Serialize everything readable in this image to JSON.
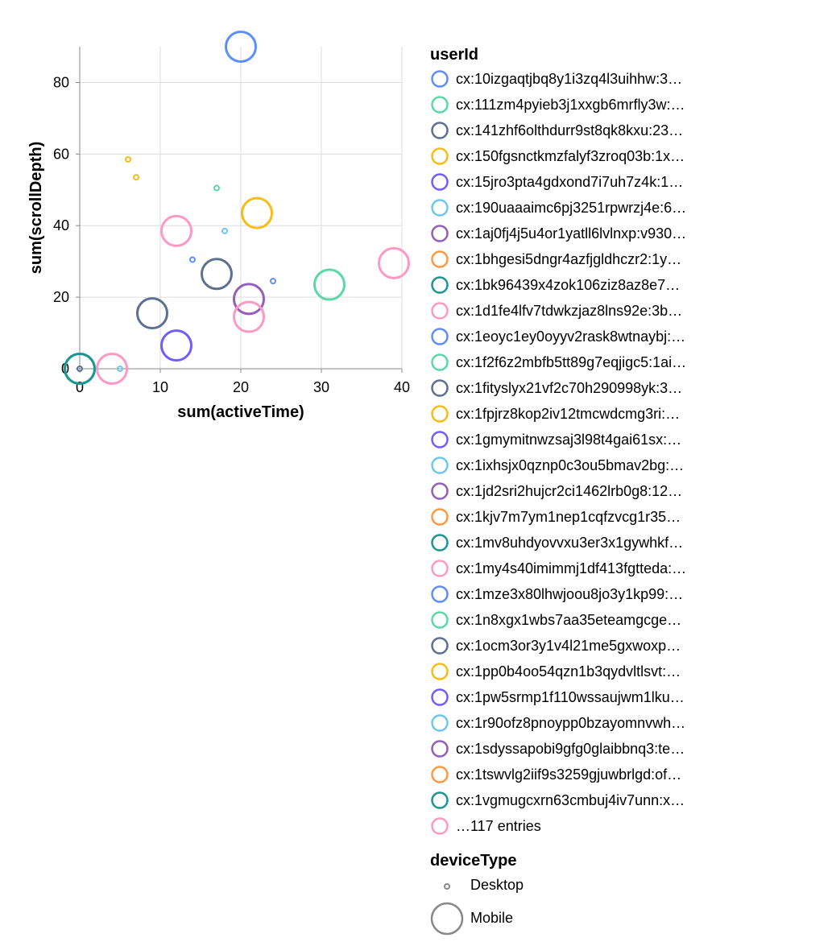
{
  "chart_data": {
    "type": "scatter",
    "xlabel": "sum(activeTime)",
    "ylabel": "sum(scrollDepth)",
    "xlim": [
      0,
      40
    ],
    "ylim": [
      0,
      90
    ],
    "x_ticks": [
      "0",
      "10",
      "20",
      "30",
      "40"
    ],
    "y_ticks": [
      "0",
      "20",
      "40",
      "60",
      "80"
    ],
    "grid": true,
    "color_legend": {
      "title": "userId",
      "placement": "right",
      "entries": [
        {
          "label": "cx:10izgaqtjbq8y1i3zq4l3uihhw:3…",
          "color": "#5b8ff9"
        },
        {
          "label": "cx:111zm4pyieb3j1xxgb6mrfly3w:…",
          "color": "#5ad8a6"
        },
        {
          "label": "cx:141zhf6olthdurr9st8qk8kxu:23…",
          "color": "#5d7092"
        },
        {
          "label": "cx:150fgsnctkmzfalyf3zroq03b:1x…",
          "color": "#f6bd16"
        },
        {
          "label": "cx:15jro3pta4gdxond7i7uh7z4k:1…",
          "color": "#6f5ef9"
        },
        {
          "label": "cx:190uaaaimc6pj3251rpwrzj4e:6…",
          "color": "#6dc8ec"
        },
        {
          "label": "cx:1aj0fj4j5u4or1yatll6lvlnxp:v930…",
          "color": "#945fb9"
        },
        {
          "label": "cx:1bhgesi5dngr4azfjgldhczr2:1y…",
          "color": "#ff9845"
        },
        {
          "label": "cx:1bk96439x4zok106ziz8az8e7…",
          "color": "#1e9493"
        },
        {
          "label": "cx:1d1fe4lfv7tdwkzjaz8lns92e:3b…",
          "color": "#ff99c3"
        },
        {
          "label": "cx:1eoyc1ey0oyyv2rask8wtnaybj:…",
          "color": "#5b8ff9"
        },
        {
          "label": "cx:1f2f6z2mbfb5tt89g7eqjigc5:1ai…",
          "color": "#5ad8a6"
        },
        {
          "label": "cx:1fityslyx21vf2c70h290998yk:3…",
          "color": "#5d7092"
        },
        {
          "label": "cx:1fpjrz8kop2iv12tmcwdcmg3ri:…",
          "color": "#f6bd16"
        },
        {
          "label": "cx:1gmymitnwzsaj3l98t4gai61sx:…",
          "color": "#6f5ef9"
        },
        {
          "label": "cx:1ixhsjx0qznp0c3ou5bmav2bg:…",
          "color": "#6dc8ec"
        },
        {
          "label": "cx:1jd2sri2hujcr2ci1462lrb0g8:12…",
          "color": "#945fb9"
        },
        {
          "label": "cx:1kjv7m7ym1nep1cqfzvcg1r35…",
          "color": "#ff9845"
        },
        {
          "label": "cx:1mv8uhdyovvxu3er3x1gywhkf…",
          "color": "#1e9493"
        },
        {
          "label": "cx:1my4s40imimmj1df413fgtteda:…",
          "color": "#ff99c3"
        },
        {
          "label": "cx:1mze3x80lhwjoou8jo3y1kp99:…",
          "color": "#5b8ff9"
        },
        {
          "label": "cx:1n8xgx1wbs7aa35eteamgcge…",
          "color": "#5ad8a6"
        },
        {
          "label": "cx:1ocm3or3y1v4l21me5gxwoxp…",
          "color": "#5d7092"
        },
        {
          "label": "cx:1pp0b4oo54qzn1b3qydvltlsvt:…",
          "color": "#f6bd16"
        },
        {
          "label": "cx:1pw5srmp1f110wssaujwm1lku…",
          "color": "#6f5ef9"
        },
        {
          "label": "cx:1r90ofz8pnoypp0bzayomnvwh…",
          "color": "#6dc8ec"
        },
        {
          "label": "cx:1sdyssapobi9gfg0glaibbnq3:te…",
          "color": "#945fb9"
        },
        {
          "label": "cx:1tswvlg2iif9s3259gjuwbrlgd:of…",
          "color": "#ff9845"
        },
        {
          "label": "cx:1vgmugcxrn63cmbuj4iv7unn:x…",
          "color": "#1e9493"
        },
        {
          "label": "…117 entries",
          "color": "#ff99c3"
        }
      ]
    },
    "size_legend": {
      "title": "deviceType",
      "entries": [
        "Desktop",
        "Mobile"
      ]
    },
    "points": [
      {
        "x": 20,
        "y": 90,
        "color": "#5b8ff9",
        "device": "Mobile"
      },
      {
        "x": 22,
        "y": 43.5,
        "color": "#f6bd16",
        "device": "Mobile"
      },
      {
        "x": 12,
        "y": 38.5,
        "color": "#ff99c3",
        "device": "Mobile"
      },
      {
        "x": 39,
        "y": 29.5,
        "color": "#ff99c3",
        "device": "Mobile"
      },
      {
        "x": 17,
        "y": 26.5,
        "color": "#5d7092",
        "device": "Mobile"
      },
      {
        "x": 31,
        "y": 23.5,
        "color": "#5ad8a6",
        "device": "Mobile"
      },
      {
        "x": 21,
        "y": 19.5,
        "color": "#945fb9",
        "device": "Mobile"
      },
      {
        "x": 9,
        "y": 15.5,
        "color": "#5d7092",
        "device": "Mobile"
      },
      {
        "x": 21,
        "y": 14.5,
        "color": "#ff99c3",
        "device": "Mobile"
      },
      {
        "x": 12,
        "y": 6.5,
        "color": "#6f5ef9",
        "device": "Mobile"
      },
      {
        "x": 4,
        "y": 0,
        "color": "#ff99c3",
        "device": "Mobile"
      },
      {
        "x": 0,
        "y": 0,
        "color": "#5ad8a6",
        "device": "Mobile"
      },
      {
        "x": 0,
        "y": 0,
        "color": "#1e9493",
        "device": "Mobile"
      },
      {
        "x": 6,
        "y": 58.5,
        "color": "#f6bd16",
        "device": "Desktop"
      },
      {
        "x": 7,
        "y": 53.5,
        "color": "#f6bd16",
        "device": "Desktop"
      },
      {
        "x": 17,
        "y": 50.5,
        "color": "#5ad8a6",
        "device": "Desktop"
      },
      {
        "x": 18,
        "y": 38.5,
        "color": "#6dc8ec",
        "device": "Desktop"
      },
      {
        "x": 14,
        "y": 30.5,
        "color": "#5b8ff9",
        "device": "Desktop"
      },
      {
        "x": 24,
        "y": 24.5,
        "color": "#5b8ff9",
        "device": "Desktop"
      },
      {
        "x": 5,
        "y": 0,
        "color": "#6dc8ec",
        "device": "Desktop"
      },
      {
        "x": 0,
        "y": 0,
        "color": "#5d7092",
        "device": "Desktop"
      }
    ]
  }
}
